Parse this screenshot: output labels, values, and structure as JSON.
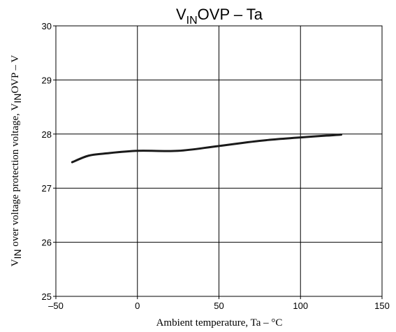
{
  "chart_data": {
    "type": "line",
    "title": "V",
    "title_sub": "IN",
    "title_rest": "OVP  –  Ta",
    "xlabel": "Ambient temperature,  Ta  –  °C",
    "ylabel_v": "V",
    "ylabel_sub_1": "IN",
    "ylabel_mid": " over voltage protection voltage, V",
    "ylabel_sub_2": "IN",
    "ylabel_rest": "OVP  –  V",
    "xlim": [
      -50,
      150
    ],
    "ylim": [
      25,
      30
    ],
    "grid": true,
    "x_ticks": [
      -50,
      0,
      50,
      100,
      150
    ],
    "x_tick_labels": [
      "–50",
      "0",
      "50",
      "100",
      "150"
    ],
    "y_ticks": [
      25,
      26,
      27,
      28,
      29,
      30
    ],
    "y_tick_labels": [
      "25",
      "26",
      "27",
      "28",
      "29",
      "30"
    ],
    "series": [
      {
        "color": "#1a1a1a",
        "x": [
          -40,
          -30,
          -20,
          0,
          25,
          50,
          80,
          125
        ],
        "y": [
          27.48,
          27.6,
          27.64,
          27.69,
          27.69,
          27.78,
          27.89,
          27.99
        ]
      }
    ]
  }
}
